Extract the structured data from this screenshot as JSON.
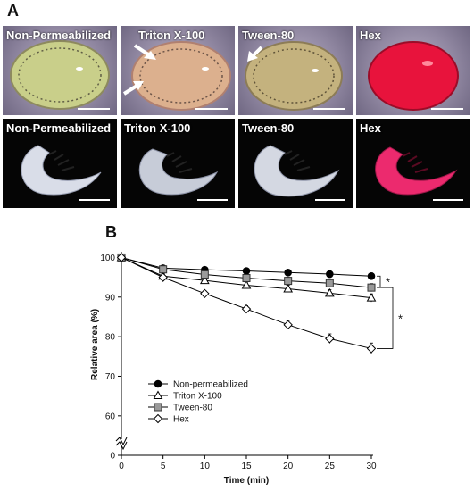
{
  "figure": {
    "panel_a_letter": "A",
    "panel_b_letter": "B",
    "photo_labels": [
      "Non-Permeabilized",
      "Triton X-100",
      "Tween-80",
      "Hex"
    ]
  },
  "colors": {
    "egg_plain": "#c9cf8a",
    "egg_triton": "#dcb08e",
    "egg_tween": "#c4b27e",
    "egg_hex": "#e8133c",
    "larva_plain": "#d9dde8",
    "larva_hex": "#ec2a6e"
  },
  "icons": [
    "arrow-icon",
    "scale-bar-icon",
    "axis-break-icon"
  ],
  "chart_data": {
    "type": "line",
    "xlabel": "Time (min)",
    "ylabel": "Relative area (%)",
    "x": [
      0,
      5,
      10,
      15,
      20,
      25,
      30
    ],
    "xticks": [
      "0",
      "5",
      "10",
      "15",
      "20",
      "25",
      "30"
    ],
    "yticks": [
      "0",
      "60",
      "70",
      "80",
      "90",
      "100"
    ],
    "xlim": [
      0,
      30
    ],
    "ylim": [
      55,
      101
    ],
    "axis_break": true,
    "series": [
      {
        "name": "Non-permeabilized",
        "marker": "filled-circle",
        "values": [
          100,
          97.3,
          96.9,
          96.6,
          96.2,
          95.8,
          95.3
        ],
        "errors": [
          0.3,
          0.6,
          0.6,
          0.6,
          0.7,
          0.8,
          0.8
        ]
      },
      {
        "name": "Triton  X-100",
        "marker": "open-triangle",
        "values": [
          100,
          95.3,
          94.2,
          93.0,
          92.1,
          91.0,
          89.8
        ],
        "errors": [
          0.3,
          0.6,
          0.8,
          0.8,
          0.9,
          0.9,
          1.0
        ]
      },
      {
        "name": "Tween-80",
        "marker": "grey-square",
        "values": [
          100,
          97.0,
          95.7,
          94.8,
          94.1,
          93.5,
          92.4
        ],
        "errors": [
          0.3,
          0.7,
          0.8,
          0.8,
          0.9,
          0.9,
          1.0
        ]
      },
      {
        "name": "Hex",
        "marker": "open-diamond",
        "values": [
          100,
          95.0,
          90.9,
          87.0,
          83.0,
          79.5,
          77.0
        ],
        "errors": [
          0.3,
          0.6,
          0.7,
          0.8,
          1.1,
          1.2,
          1.4
        ]
      }
    ],
    "significance": [
      {
        "label": "*",
        "between": [
          "Non-permeabilized",
          "Tween-80"
        ]
      },
      {
        "label": "*",
        "between": [
          "Tween-80",
          "Hex"
        ]
      }
    ],
    "legend_placement": "lower-left"
  }
}
